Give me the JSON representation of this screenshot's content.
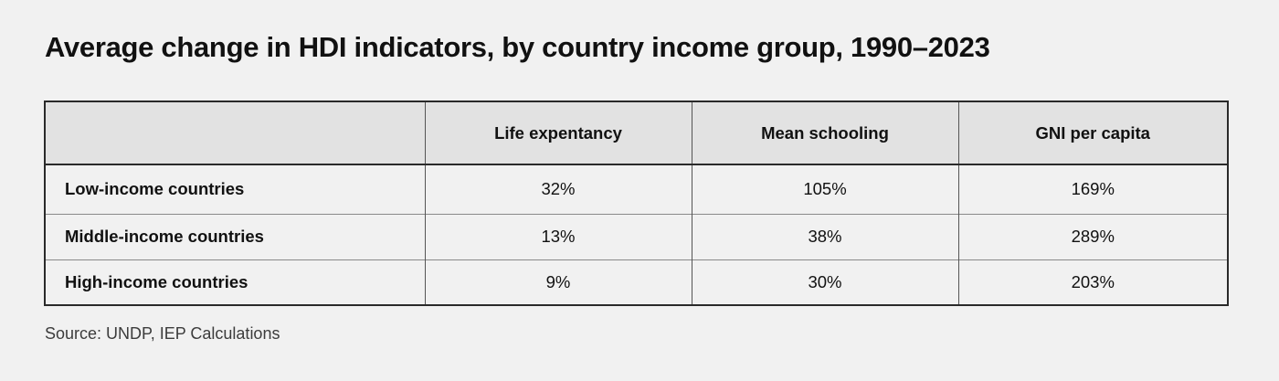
{
  "title": "Average change in HDI indicators, by country income group, 1990–2023",
  "source": "Source: UNDP, IEP Calculations",
  "chart_data": {
    "type": "table",
    "title": "Average change in HDI indicators, by country income group, 1990–2023",
    "columns": [
      "",
      "Life expentancy",
      "Mean schooling",
      "GNI per capita"
    ],
    "rows": [
      {
        "label": "Low-income countries",
        "values": [
          "32%",
          "105%",
          "169%"
        ]
      },
      {
        "label": "Middle-income countries",
        "values": [
          "13%",
          "38%",
          "289%"
        ]
      },
      {
        "label": "High-income countries",
        "values": [
          "9%",
          "30%",
          "203%"
        ]
      }
    ],
    "source": "Source: UNDP, IEP Calculations"
  }
}
